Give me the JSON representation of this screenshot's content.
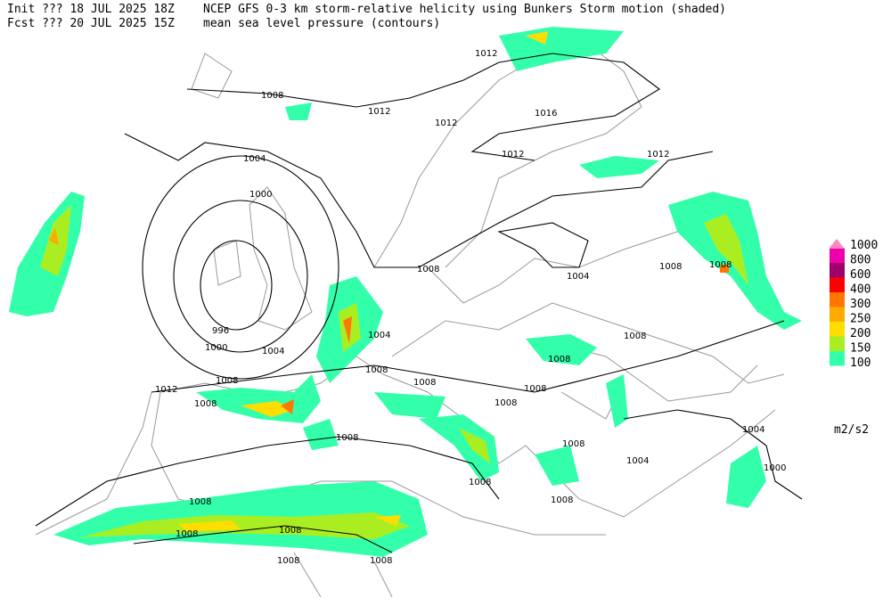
{
  "header": {
    "init_label": "Init  ??? 18 JUL 2025 18Z",
    "fcst_label": "Fcst ??? 20 JUL 2025 15Z",
    "shaded_title": "NCEP GFS 0-3 km storm-relative helicity using Bunkers Storm motion (shaded)",
    "contour_title": "mean sea level pressure (contours)"
  },
  "legend": {
    "items": [
      {
        "label": 1000,
        "color": "#ff88bb"
      },
      {
        "label": 800,
        "color": "#ee00aa"
      },
      {
        "label": 600,
        "color": "#a0006a"
      },
      {
        "label": 400,
        "color": "#ff0000"
      },
      {
        "label": 300,
        "color": "#ff7700"
      },
      {
        "label": 250,
        "color": "#ffaa00"
      },
      {
        "label": 200,
        "color": "#ffdd00"
      },
      {
        "label": 150,
        "color": "#aaee22"
      },
      {
        "label": 100,
        "color": "#33ffaa"
      }
    ],
    "units": "m2/s2"
  },
  "contour_labels": [
    1012,
    1012,
    1012,
    1016,
    1012,
    1012,
    1008,
    1004,
    1000,
    996,
    1000,
    1004,
    1008,
    1012,
    1008,
    1008,
    1004,
    1008,
    1008,
    1004,
    1008,
    1008,
    1008,
    1008,
    1008,
    1004,
    1004,
    1000,
    1008,
    1008,
    1008,
    1008,
    1008,
    1008,
    1008,
    1008,
    1008,
    1008
  ]
}
